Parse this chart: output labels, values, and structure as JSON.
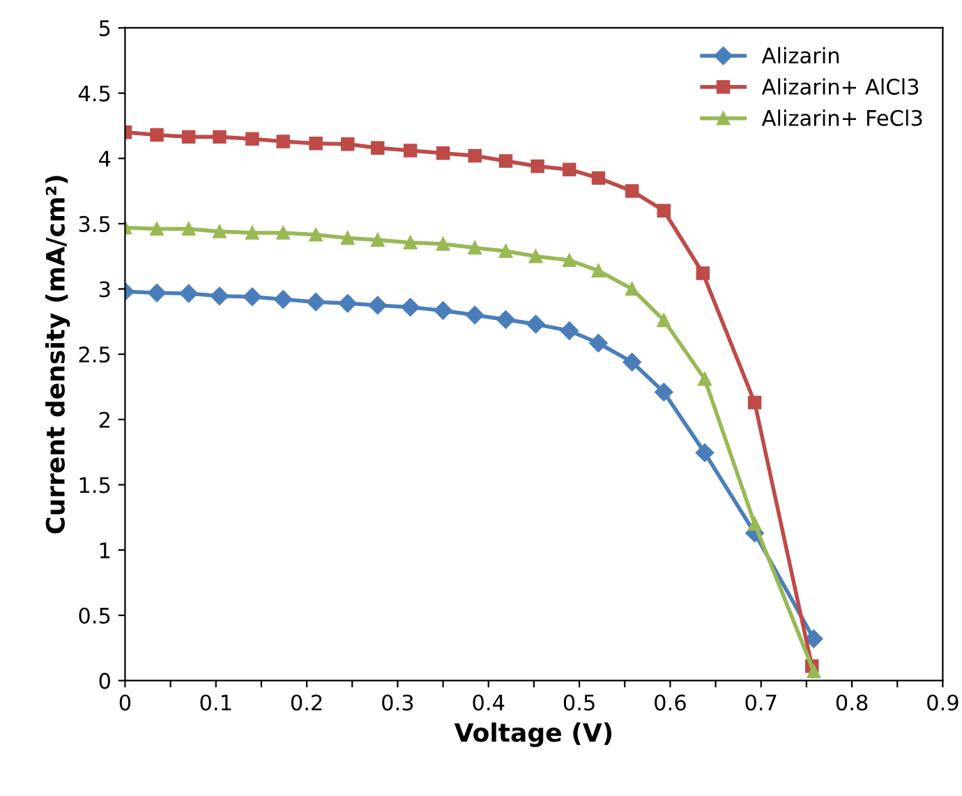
{
  "chart_data": {
    "type": "line",
    "xlabel": "Voltage (V)",
    "ylabel": "Current density (mA/cm²)",
    "xlim": [
      0,
      0.9
    ],
    "ylim": [
      0,
      5
    ],
    "xticks": [
      0,
      {
        "value": 0.05,
        "label": null
      },
      0.1,
      {
        "value": 0.15,
        "label": null
      },
      0.2,
      {
        "value": 0.25,
        "label": null
      },
      0.3,
      {
        "value": 0.35,
        "label": null
      },
      0.4,
      {
        "value": 0.45,
        "label": null
      },
      0.5,
      {
        "value": 0.55,
        "label": null
      },
      0.6,
      {
        "value": 0.65,
        "label": null
      },
      0.7,
      {
        "value": 0.75,
        "label": null
      },
      0.8,
      {
        "value": 0.85,
        "label": null
      },
      0.9
    ],
    "yticks": [
      0,
      0.5,
      1,
      1.5,
      2,
      2.5,
      3,
      3.5,
      4,
      4.5,
      5
    ],
    "grid": false,
    "legend": "top right",
    "line_style": "solid",
    "series": [
      {
        "name": "Alizarin",
        "color": "#4a7ebb",
        "marker": "diamond",
        "x": [
          0,
          0.035,
          0.07,
          0.104,
          0.14,
          0.174,
          0.21,
          0.245,
          0.278,
          0.314,
          0.35,
          0.385,
          0.419,
          0.452,
          0.489,
          0.521,
          0.558,
          0.593,
          0.638,
          0.693,
          0.758
        ],
        "values": [
          2.98,
          2.97,
          2.965,
          2.945,
          2.94,
          2.92,
          2.9,
          2.89,
          2.875,
          2.86,
          2.835,
          2.8,
          2.765,
          2.73,
          2.68,
          2.585,
          2.44,
          2.21,
          1.745,
          1.13,
          0.32
        ]
      },
      {
        "name": "Alizarin+ AlCl3",
        "color": "#be4b48",
        "marker": "square",
        "x": [
          0,
          0.035,
          0.07,
          0.104,
          0.14,
          0.174,
          0.21,
          0.245,
          0.278,
          0.314,
          0.35,
          0.385,
          0.419,
          0.454,
          0.489,
          0.521,
          0.558,
          0.593,
          0.636,
          0.693,
          0.756
        ],
        "values": [
          4.2,
          4.18,
          4.165,
          4.165,
          4.15,
          4.13,
          4.115,
          4.11,
          4.08,
          4.06,
          4.04,
          4.02,
          3.98,
          3.94,
          3.915,
          3.85,
          3.75,
          3.6,
          3.12,
          2.13,
          0.11
        ]
      },
      {
        "name": "Alizarin+ FeCl3",
        "color": "#98b954",
        "marker": "triangle",
        "x": [
          0,
          0.035,
          0.07,
          0.104,
          0.14,
          0.174,
          0.21,
          0.245,
          0.278,
          0.314,
          0.35,
          0.385,
          0.419,
          0.452,
          0.489,
          0.521,
          0.558,
          0.593,
          0.638,
          0.693,
          0.758
        ],
        "values": [
          3.47,
          3.46,
          3.46,
          3.44,
          3.43,
          3.43,
          3.415,
          3.39,
          3.375,
          3.355,
          3.345,
          3.315,
          3.29,
          3.25,
          3.22,
          3.14,
          3.0,
          2.76,
          2.31,
          1.2,
          0.07
        ]
      }
    ]
  }
}
